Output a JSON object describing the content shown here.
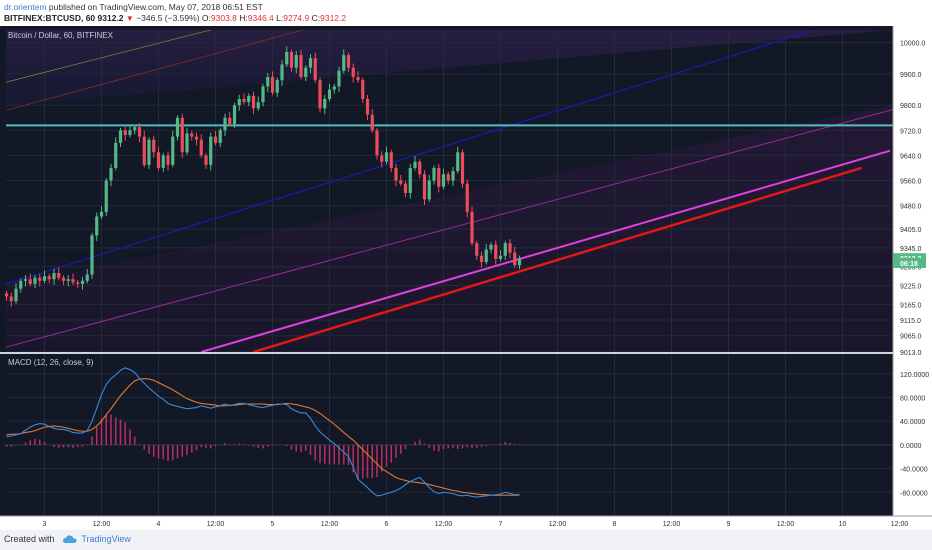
{
  "header": {
    "user": "dr.orientem",
    "published_text": "published on TradingView.com, May 07, 2018 06:51 EST",
    "symbol": "BITFINEX:BTCUSD, 60",
    "last": "9312.2",
    "arrow": "▼",
    "change": "−346.5 (−3.59%)",
    "o_label": "O:",
    "o_val": "9303.8",
    "h_label": "H:",
    "h_val": "9346.4",
    "l_label": "L:",
    "l_val": "9274.9",
    "c_label": "C:",
    "c_val": "9312.2"
  },
  "footer": {
    "created_with": "Created with",
    "brand": "TradingView"
  },
  "colors": {
    "background": "#121826",
    "up": "#53b987",
    "down": "#eb4d5c",
    "horizontal_line": "#4fc0c0",
    "pitch_blue": "#1a1aa8",
    "pitch_magenta": "#e040e0",
    "pitch_red": "#e01818",
    "upper_green": "#6a8a3a",
    "upper_red": "#8a2a2a",
    "purple_line": "#9a2a9a",
    "macd": "#3a8ad8",
    "signal": "#e07a30",
    "histogram": "#b03060"
  },
  "chart_data": [
    {
      "type": "candlestick",
      "title": "Bitcoin / Dollar, 60, BITFINEX",
      "ylim": [
        9013,
        10040
      ],
      "y_ticks": [
        "10000.0",
        "9900.0",
        "9800.0",
        "9720.0",
        "9640.0",
        "9560.0",
        "9480.0",
        "9405.0",
        "9345.0",
        "9285.0",
        "9225.0",
        "9165.0",
        "9115.0",
        "9065.0",
        "9013.0"
      ],
      "price_tags": [
        {
          "value": 9312.2,
          "text": "9312.2"
        },
        {
          "value": 9297,
          "text": "06:18"
        }
      ],
      "horizontal_line": 9736,
      "closes": [
        9190,
        9175,
        9215,
        9240,
        9245,
        9230,
        9250,
        9240,
        9255,
        9245,
        9265,
        9250,
        9240,
        9245,
        9235,
        9230,
        9240,
        9260,
        9385,
        9445,
        9460,
        9560,
        9600,
        9680,
        9720,
        9705,
        9720,
        9730,
        9700,
        9610,
        9690,
        9650,
        9600,
        9640,
        9610,
        9700,
        9760,
        9650,
        9710,
        9700,
        9690,
        9640,
        9610,
        9700,
        9680,
        9720,
        9760,
        9740,
        9800,
        9820,
        9810,
        9830,
        9790,
        9810,
        9860,
        9890,
        9840,
        9880,
        9930,
        9970,
        9920,
        9960,
        9890,
        9920,
        9950,
        9880,
        9790,
        9820,
        9850,
        9860,
        9910,
        9960,
        9920,
        9890,
        9880,
        9820,
        9770,
        9720,
        9640,
        9620,
        9650,
        9600,
        9560,
        9550,
        9520,
        9600,
        9620,
        9580,
        9500,
        9560,
        9600,
        9540,
        9580,
        9560,
        9590,
        9650,
        9550,
        9460,
        9360,
        9320,
        9300,
        9340,
        9355,
        9310,
        9320,
        9360,
        9330,
        9290,
        9312
      ]
    },
    {
      "type": "line",
      "title": "MACD (12, 26, close, 9)",
      "ylim": [
        -120,
        150
      ],
      "y_ticks": [
        "120.0000",
        "80.0000",
        "40.0000",
        "0.0000",
        "-40.0000",
        "-80.0000"
      ],
      "series": [
        {
          "values": [
            14,
            15,
            17,
            19,
            25,
            30,
            34,
            36,
            35,
            31,
            28,
            26,
            26,
            24,
            21,
            20,
            20,
            24,
            40,
            62,
            85,
            102,
            112,
            118,
            126,
            130,
            127,
            122,
            112,
            104,
            96,
            89,
            82,
            77,
            70,
            67,
            65,
            63,
            61,
            62,
            63,
            66,
            64,
            62,
            64,
            66,
            69,
            66,
            68,
            70,
            70,
            68,
            66,
            64,
            63,
            65,
            67,
            69,
            69,
            68,
            61,
            57,
            54,
            54,
            45,
            32,
            22,
            15,
            8,
            2,
            -5,
            -12,
            -20,
            -38,
            -58,
            -65,
            -72,
            -80,
            -86,
            -85,
            -82,
            -80,
            -77,
            -73,
            -67,
            -62,
            -58,
            -55,
            -63,
            -72,
            -79,
            -82,
            -80,
            -81,
            -82,
            -85,
            -86,
            -85,
            -87,
            -88,
            -87,
            -86,
            -85,
            -84,
            -83,
            -80,
            -82,
            -84,
            -84
          ]
        },
        {
          "values": [
            17,
            18,
            18,
            19,
            21,
            22,
            24,
            27,
            30,
            31,
            32,
            31,
            30,
            28,
            26,
            24,
            23,
            23,
            26,
            32,
            40,
            51,
            61,
            72,
            83,
            92,
            101,
            108,
            111,
            112,
            111,
            109,
            105,
            101,
            97,
            93,
            88,
            83,
            78,
            75,
            72,
            70,
            69,
            68,
            67,
            66,
            66,
            67,
            67,
            68,
            69,
            69,
            69,
            69,
            69,
            68,
            68,
            68,
            69,
            70,
            69,
            68,
            66,
            64,
            62,
            58,
            53,
            47,
            41,
            35,
            28,
            21,
            14,
            8,
            0,
            -8,
            -16,
            -24,
            -32,
            -40,
            -45,
            -50,
            -55,
            -58,
            -60,
            -62,
            -63,
            -64,
            -65,
            -67,
            -69,
            -71,
            -73,
            -75,
            -77,
            -78,
            -80,
            -81,
            -82,
            -83,
            -84,
            -84,
            -85,
            -85,
            -85,
            -85,
            -85,
            -85,
            -85
          ]
        }
      ],
      "histogram": [
        -3,
        -3,
        -1,
        0,
        4,
        8,
        10,
        9,
        5,
        0,
        -4,
        -5,
        -4,
        -4,
        -5,
        -4,
        -3,
        1,
        14,
        30,
        45,
        51,
        51,
        46,
        43,
        38,
        26,
        14,
        1,
        -8,
        -15,
        -20,
        -23,
        -24,
        -27,
        -26,
        -23,
        -20,
        -17,
        -13,
        -9,
        -4,
        -5,
        -6,
        -3,
        0,
        3,
        -1,
        1,
        2,
        1,
        -1,
        -3,
        -5,
        -6,
        -3,
        -1,
        1,
        0,
        -2,
        -8,
        -11,
        -12,
        -10,
        -17,
        -26,
        -31,
        -32,
        -33,
        -33,
        -33,
        -33,
        -34,
        -46,
        -58,
        -57,
        -56,
        -56,
        -54,
        -45,
        -37,
        -30,
        -22,
        -15,
        -7,
        0,
        5,
        9,
        2,
        -5,
        -10,
        -11,
        -7,
        -6,
        -5,
        -7,
        -6,
        -4,
        -5,
        -5,
        -3,
        -2,
        0,
        1,
        2,
        5,
        3,
        1,
        1
      ]
    }
  ],
  "x_axis": {
    "labels": [
      {
        "bar": 8,
        "text": "3"
      },
      {
        "bar": 20,
        "text": "12:00"
      },
      {
        "bar": 32,
        "text": "4"
      },
      {
        "bar": 44,
        "text": "12:00"
      },
      {
        "bar": 56,
        "text": "5"
      },
      {
        "bar": 68,
        "text": "12:00"
      },
      {
        "bar": 80,
        "text": "6"
      },
      {
        "bar": 92,
        "text": "12:00"
      },
      {
        "bar": 104,
        "text": "7"
      },
      {
        "bar": 116,
        "text": "12:00"
      },
      {
        "bar": 128,
        "text": "8"
      },
      {
        "bar": 140,
        "text": "12:00"
      },
      {
        "bar": 152,
        "text": "9"
      },
      {
        "bar": 164,
        "text": "12:00"
      },
      {
        "bar": 176,
        "text": "10"
      },
      {
        "bar": 188,
        "text": "12:00"
      },
      {
        "bar": 200,
        "text": "1"
      }
    ]
  }
}
